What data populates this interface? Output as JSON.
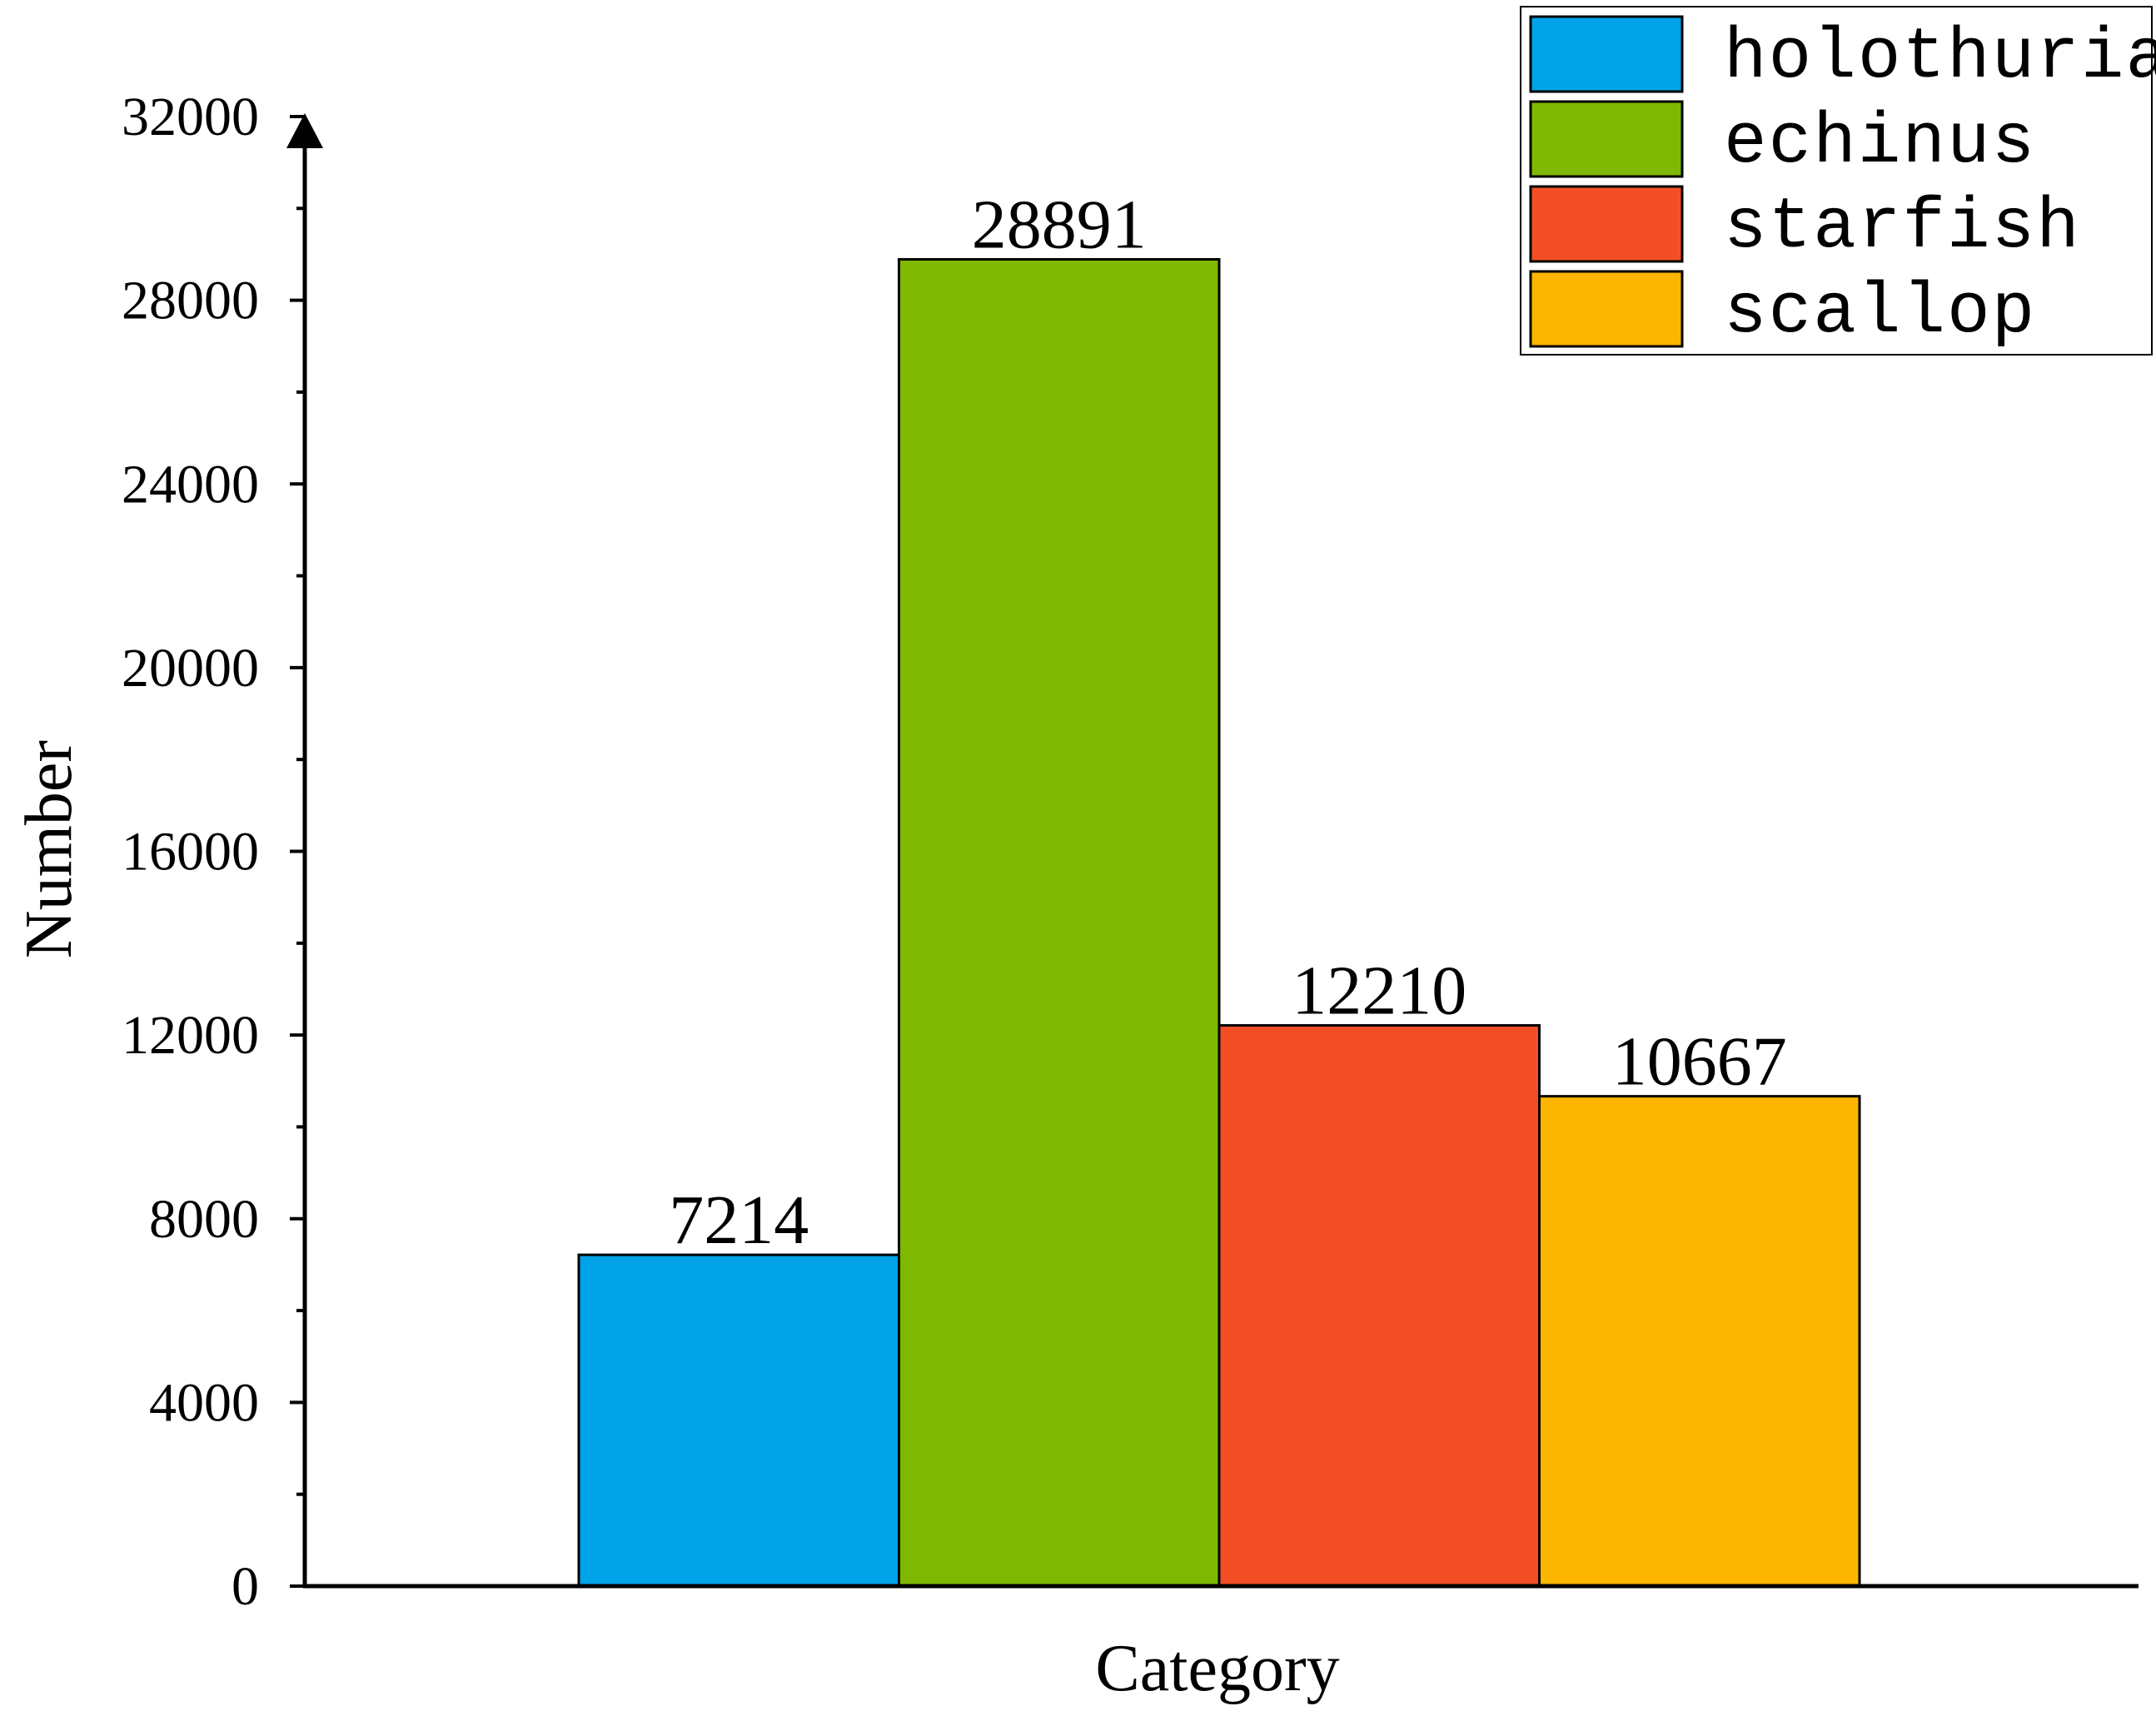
{
  "chart_data": {
    "type": "bar",
    "xlabel": "Category",
    "ylabel": "Number",
    "ylim": [
      0,
      32000
    ],
    "yticks": [
      0,
      4000,
      8000,
      12000,
      16000,
      20000,
      24000,
      28000,
      32000
    ],
    "yminor_step": 2000,
    "grid": false,
    "legend_position": "top-right",
    "show_data_labels": true,
    "series": [
      {
        "name": "holothurian",
        "value": 7214,
        "color": "#00A2E8"
      },
      {
        "name": "echinus",
        "value": 28891,
        "color": "#7FB800"
      },
      {
        "name": "starfish",
        "value": 12210,
        "color": "#F34F26"
      },
      {
        "name": "scallop",
        "value": 10667,
        "color": "#FDB600"
      }
    ]
  }
}
